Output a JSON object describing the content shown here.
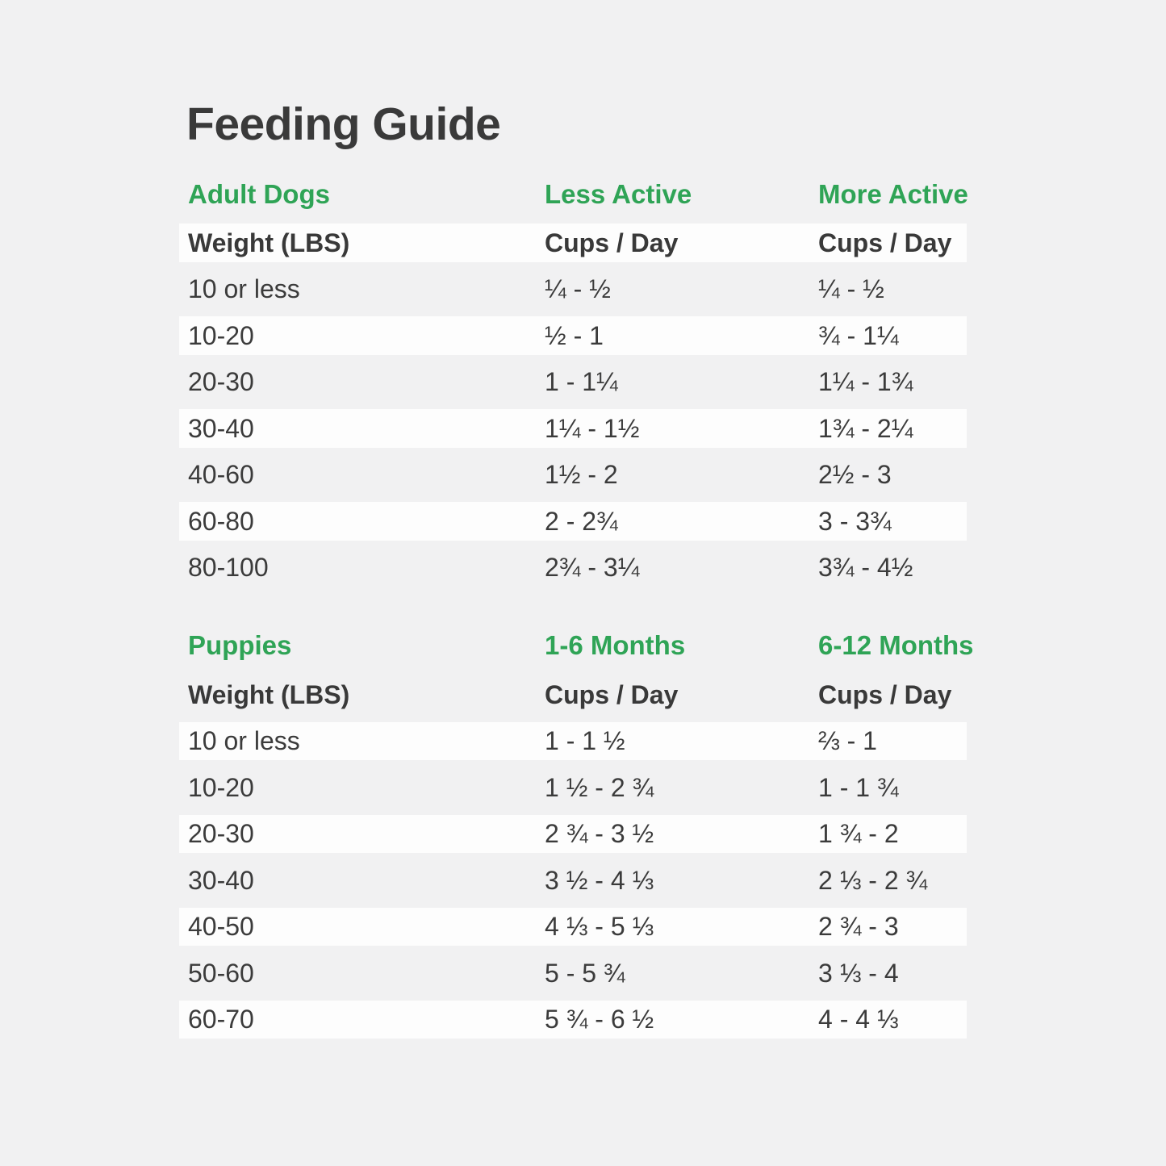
{
  "title": "Feeding Guide",
  "colors": {
    "accent_green": "#2fa456",
    "text_dark": "#3b3b3b",
    "background": "#f1f1f2",
    "row_band": "#fdfdfd"
  },
  "adult": {
    "section_label": "Adult Dogs",
    "col2_label": "Less Active",
    "col3_label": "More Active",
    "header": {
      "weight": "Weight (LBS)",
      "cups1": "Cups / Day",
      "cups2": "Cups / Day"
    },
    "rows": [
      {
        "weight": "10 or less",
        "less_active": "¼ - ½",
        "more_active": "¼ - ½"
      },
      {
        "weight": "10-20",
        "less_active": "½ - 1",
        "more_active": "¾ - 1¼"
      },
      {
        "weight": "20-30",
        "less_active": "1 - 1¼",
        "more_active": "1¼ - 1¾"
      },
      {
        "weight": "30-40",
        "less_active": "1¼ - 1½",
        "more_active": "1¾ - 2¼"
      },
      {
        "weight": "40-60",
        "less_active": "1½ - 2",
        "more_active": "2½ - 3"
      },
      {
        "weight": "60-80",
        "less_active": "2 - 2¾",
        "more_active": "3 - 3¾"
      },
      {
        "weight": "80-100",
        "less_active": "2¾ - 3¼",
        "more_active": "3¾ - 4½"
      }
    ]
  },
  "puppies": {
    "section_label": "Puppies",
    "col2_label": "1-6 Months",
    "col3_label": "6-12 Months",
    "header": {
      "weight": "Weight (LBS)",
      "cups1": "Cups / Day",
      "cups2": "Cups / Day"
    },
    "rows": [
      {
        "weight": "10 or less",
        "months_1_6": "1 - 1 ½",
        "months_6_12": "⅔ - 1"
      },
      {
        "weight": "10-20",
        "months_1_6": "1 ½ - 2 ¾",
        "months_6_12": "1 - 1 ¾"
      },
      {
        "weight": "20-30",
        "months_1_6": "2 ¾ - 3 ½",
        "months_6_12": "1 ¾ - 2"
      },
      {
        "weight": "30-40",
        "months_1_6": "3 ½ - 4 ⅓",
        "months_6_12": "2 ⅓ - 2 ¾"
      },
      {
        "weight": "40-50",
        "months_1_6": "4 ⅓ - 5 ⅓",
        "months_6_12": "2 ¾ - 3"
      },
      {
        "weight": "50-60",
        "months_1_6": "5 - 5 ¾",
        "months_6_12": "3 ⅓ - 4"
      },
      {
        "weight": "60-70",
        "months_1_6": "5 ¾ - 6 ½",
        "months_6_12": "4 - 4 ⅓"
      }
    ]
  }
}
